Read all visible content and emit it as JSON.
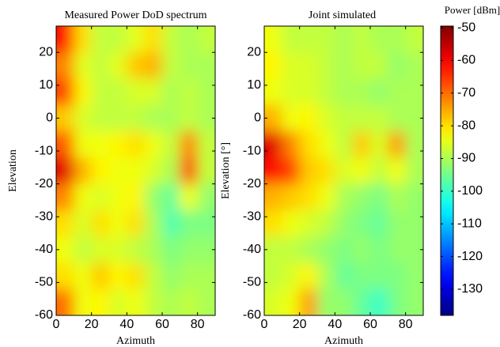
{
  "chart_data": [
    {
      "type": "heatmap",
      "title": "Measured Power DoD spectrum",
      "xlabel": "Azimuth",
      "ylabel": "Elevation",
      "x": [
        5,
        15,
        25,
        35,
        45,
        55,
        65,
        75,
        85
      ],
      "y": [
        24,
        16,
        8,
        0,
        -8,
        -16,
        -24,
        -32,
        -40,
        -48,
        -56
      ],
      "values": [
        [
          -62,
          -80,
          -88,
          -88,
          -85,
          -80,
          -88,
          -90,
          -88
        ],
        [
          -72,
          -85,
          -88,
          -85,
          -78,
          -76,
          -88,
          -90,
          -90
        ],
        [
          -66,
          -82,
          -88,
          -88,
          -86,
          -86,
          -90,
          -88,
          -90
        ],
        [
          -78,
          -86,
          -88,
          -88,
          -88,
          -90,
          -90,
          -88,
          -90
        ],
        [
          -68,
          -84,
          -84,
          -82,
          -80,
          -84,
          -88,
          -72,
          -88
        ],
        [
          -58,
          -76,
          -82,
          -84,
          -84,
          -86,
          -90,
          -66,
          -88
        ],
        [
          -72,
          -84,
          -86,
          -84,
          -82,
          -92,
          -96,
          -84,
          -92
        ],
        [
          -80,
          -86,
          -80,
          -84,
          -80,
          -90,
          -98,
          -94,
          -94
        ],
        [
          -84,
          -88,
          -86,
          -86,
          -88,
          -90,
          -94,
          -92,
          -92
        ],
        [
          -80,
          -84,
          -78,
          -82,
          -80,
          -88,
          -92,
          -90,
          -90
        ],
        [
          -70,
          -84,
          -82,
          -86,
          -84,
          -88,
          -90,
          -88,
          -90
        ]
      ],
      "xlim": [
        0,
        90
      ],
      "ylim": [
        -60,
        28
      ],
      "xticks": [
        0,
        20,
        40,
        60,
        80
      ],
      "yticks": [
        -60,
        -50,
        -40,
        -30,
        -20,
        -10,
        0,
        10,
        20
      ]
    },
    {
      "type": "heatmap",
      "title": "Joint simulated",
      "xlabel": "Azimuth",
      "ylabel": "Elevation [°]",
      "x": [
        5,
        15,
        25,
        35,
        45,
        55,
        65,
        75,
        85
      ],
      "y": [
        24,
        16,
        8,
        0,
        -8,
        -16,
        -24,
        -32,
        -40,
        -48,
        -56
      ],
      "values": [
        [
          -84,
          -88,
          -88,
          -88,
          -90,
          -88,
          -90,
          -90,
          -88
        ],
        [
          -82,
          -86,
          -86,
          -88,
          -90,
          -88,
          -88,
          -92,
          -90
        ],
        [
          -84,
          -86,
          -86,
          -88,
          -90,
          -90,
          -92,
          -90,
          -90
        ],
        [
          -76,
          -84,
          -82,
          -86,
          -88,
          -88,
          -88,
          -90,
          -90
        ],
        [
          -58,
          -72,
          -80,
          -84,
          -88,
          -78,
          -86,
          -74,
          -90
        ],
        [
          -62,
          -66,
          -78,
          -80,
          -86,
          -84,
          -88,
          -84,
          -90
        ],
        [
          -76,
          -78,
          -80,
          -84,
          -90,
          -92,
          -94,
          -90,
          -92
        ],
        [
          -80,
          -84,
          -86,
          -88,
          -92,
          -94,
          -96,
          -92,
          -92
        ],
        [
          -88,
          -88,
          -90,
          -92,
          -94,
          -92,
          -94,
          -92,
          -92
        ],
        [
          -88,
          -86,
          -82,
          -90,
          -96,
          -94,
          -94,
          -94,
          -92
        ],
        [
          -86,
          -84,
          -74,
          -92,
          -92,
          -96,
          -100,
          -94,
          -92
        ]
      ],
      "xlim": [
        0,
        90
      ],
      "ylim": [
        -60,
        28
      ],
      "xticks": [
        0,
        20,
        40,
        60,
        80
      ],
      "yticks": [
        -60,
        -50,
        -40,
        -30,
        -20,
        -10,
        0,
        10,
        20
      ]
    }
  ],
  "colorbar": {
    "title": "Power [dBm]",
    "colormap": "jet",
    "clim": [
      -138,
      -49.5
    ],
    "ticks": [
      -130,
      -120,
      -110,
      -100,
      -90,
      -80,
      -70,
      -60,
      -50
    ]
  }
}
